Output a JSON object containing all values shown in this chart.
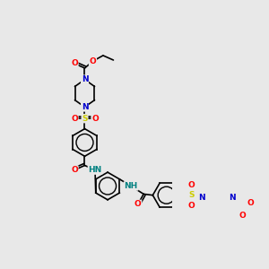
{
  "bg_color": "#e8e8e8",
  "atom_colors": {
    "O": "#ff0000",
    "N": "#0000cd",
    "S": "#cccc00",
    "NH": "#008080"
  },
  "bond_color": "#000000",
  "bond_width": 1.2,
  "font_size": 6.5,
  "fig_size": [
    3.0,
    3.0
  ],
  "dpi": 100,
  "coords": {
    "scale": 1.0
  }
}
